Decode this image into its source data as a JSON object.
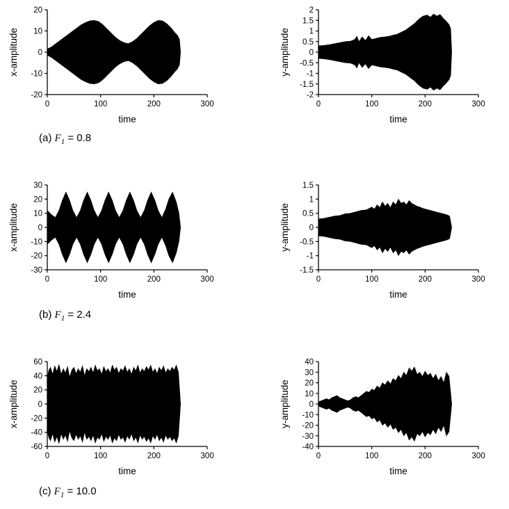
{
  "page": {
    "background": "#ffffff",
    "ink": "#000000"
  },
  "captions": [
    {
      "index": "(a)",
      "symbol": "F",
      "subscript": "1",
      "value": "= 0.8"
    },
    {
      "index": "(b)",
      "symbol": "F",
      "subscript": "1",
      "value": "= 2.4"
    },
    {
      "index": "(c)",
      "symbol": "F",
      "subscript": "1",
      "value": "= 10.0"
    }
  ],
  "chart_data": [
    {
      "id": "a-x",
      "type": "line",
      "waveform": "dense-oscillation-envelope",
      "title": "",
      "xlabel": "time",
      "ylabel": "x-amplitude",
      "xlim": [
        0,
        300
      ],
      "xticks": [
        "0",
        "100",
        "200",
        "300"
      ],
      "ylim": [
        -20,
        20
      ],
      "yticks": [
        "20",
        "10",
        "0",
        "-10",
        "-20"
      ],
      "grid": false,
      "legend": false,
      "signal_end": 250,
      "envelope": [
        [
          0,
          1.5
        ],
        [
          8,
          2.5
        ],
        [
          16,
          4
        ],
        [
          24,
          5.5
        ],
        [
          32,
          7
        ],
        [
          40,
          8.5
        ],
        [
          48,
          10
        ],
        [
          56,
          11.5
        ],
        [
          64,
          13
        ],
        [
          72,
          14
        ],
        [
          80,
          14.8
        ],
        [
          88,
          15
        ],
        [
          96,
          14.5
        ],
        [
          104,
          13
        ],
        [
          112,
          11
        ],
        [
          120,
          9
        ],
        [
          128,
          7
        ],
        [
          136,
          5.5
        ],
        [
          144,
          4.5
        ],
        [
          152,
          4
        ],
        [
          160,
          5
        ],
        [
          168,
          6.5
        ],
        [
          176,
          8.5
        ],
        [
          184,
          10.5
        ],
        [
          192,
          12.5
        ],
        [
          200,
          14
        ],
        [
          208,
          15
        ],
        [
          216,
          14.8
        ],
        [
          224,
          13.5
        ],
        [
          232,
          11.5
        ],
        [
          240,
          9
        ],
        [
          244,
          8
        ],
        [
          248,
          6
        ],
        [
          250,
          0
        ]
      ]
    },
    {
      "id": "a-y",
      "type": "line",
      "waveform": "dense-oscillation-envelope",
      "title": "",
      "xlabel": "time",
      "ylabel": "y-amplitude",
      "xlim": [
        0,
        300
      ],
      "xticks": [
        "0",
        "100",
        "200",
        "300"
      ],
      "ylim": [
        -2,
        2
      ],
      "yticks": [
        "2",
        "1.5",
        "1",
        "0.5",
        "0",
        "-0.5",
        "-1",
        "-1.5",
        "-2"
      ],
      "grid": false,
      "legend": false,
      "signal_end": 250,
      "envelope": [
        [
          0,
          0.3
        ],
        [
          10,
          0.32
        ],
        [
          20,
          0.35
        ],
        [
          30,
          0.4
        ],
        [
          40,
          0.45
        ],
        [
          50,
          0.5
        ],
        [
          60,
          0.52
        ],
        [
          68,
          0.6
        ],
        [
          72,
          0.75
        ],
        [
          76,
          0.5
        ],
        [
          82,
          0.72
        ],
        [
          88,
          0.55
        ],
        [
          94,
          0.78
        ],
        [
          100,
          0.6
        ],
        [
          108,
          0.65
        ],
        [
          116,
          0.7
        ],
        [
          124,
          0.72
        ],
        [
          132,
          0.75
        ],
        [
          140,
          0.8
        ],
        [
          148,
          0.85
        ],
        [
          156,
          0.95
        ],
        [
          164,
          1.05
        ],
        [
          172,
          1.2
        ],
        [
          180,
          1.35
        ],
        [
          188,
          1.55
        ],
        [
          196,
          1.7
        ],
        [
          204,
          1.75
        ],
        [
          210,
          1.65
        ],
        [
          216,
          1.8
        ],
        [
          222,
          1.7
        ],
        [
          228,
          1.78
        ],
        [
          234,
          1.6
        ],
        [
          240,
          1.45
        ],
        [
          245,
          1.3
        ],
        [
          248,
          1.1
        ],
        [
          250,
          0
        ]
      ]
    },
    {
      "id": "b-x",
      "type": "line",
      "waveform": "dense-oscillation-envelope",
      "title": "",
      "xlabel": "time",
      "ylabel": "x-amplitude",
      "xlim": [
        0,
        300
      ],
      "xticks": [
        "0",
        "100",
        "200",
        "300"
      ],
      "ylim": [
        -30,
        30
      ],
      "yticks": [
        "30",
        "20",
        "10",
        "0",
        "-10",
        "-20",
        "-30"
      ],
      "grid": false,
      "legend": false,
      "signal_end": 250,
      "envelope": [
        [
          0,
          12
        ],
        [
          8,
          9
        ],
        [
          15,
          7
        ],
        [
          22,
          12
        ],
        [
          28,
          19
        ],
        [
          35,
          25
        ],
        [
          42,
          19
        ],
        [
          48,
          12
        ],
        [
          55,
          7
        ],
        [
          62,
          12
        ],
        [
          68,
          19
        ],
        [
          75,
          25
        ],
        [
          82,
          19
        ],
        [
          88,
          12
        ],
        [
          95,
          7
        ],
        [
          102,
          12
        ],
        [
          108,
          19
        ],
        [
          115,
          25
        ],
        [
          122,
          19
        ],
        [
          128,
          12
        ],
        [
          135,
          7
        ],
        [
          142,
          12
        ],
        [
          148,
          19
        ],
        [
          155,
          25
        ],
        [
          162,
          19
        ],
        [
          168,
          12
        ],
        [
          175,
          7
        ],
        [
          182,
          12
        ],
        [
          188,
          19
        ],
        [
          195,
          25
        ],
        [
          202,
          19
        ],
        [
          208,
          12
        ],
        [
          215,
          7
        ],
        [
          222,
          13
        ],
        [
          228,
          20
        ],
        [
          235,
          25
        ],
        [
          242,
          18
        ],
        [
          247,
          10
        ],
        [
          250,
          0
        ]
      ]
    },
    {
      "id": "b-y",
      "type": "line",
      "waveform": "dense-oscillation-envelope",
      "title": "",
      "xlabel": "time",
      "ylabel": "y-amplitude",
      "xlim": [
        0,
        300
      ],
      "xticks": [
        "0",
        "100",
        "200",
        "300"
      ],
      "ylim": [
        -1.5,
        1.5
      ],
      "yticks": [
        "1.5",
        "1",
        "0.5",
        "0",
        "-0.5",
        "-1",
        "-1.5"
      ],
      "grid": false,
      "legend": false,
      "signal_end": 250,
      "envelope": [
        [
          0,
          0.3
        ],
        [
          10,
          0.32
        ],
        [
          20,
          0.36
        ],
        [
          30,
          0.4
        ],
        [
          40,
          0.42
        ],
        [
          50,
          0.48
        ],
        [
          60,
          0.5
        ],
        [
          70,
          0.55
        ],
        [
          80,
          0.6
        ],
        [
          90,
          0.62
        ],
        [
          100,
          0.72
        ],
        [
          105,
          0.65
        ],
        [
          110,
          0.8
        ],
        [
          115,
          0.7
        ],
        [
          120,
          0.9
        ],
        [
          125,
          0.75
        ],
        [
          130,
          0.85
        ],
        [
          135,
          0.7
        ],
        [
          140,
          0.9
        ],
        [
          145,
          0.8
        ],
        [
          150,
          1.0
        ],
        [
          155,
          0.85
        ],
        [
          160,
          0.9
        ],
        [
          165,
          0.8
        ],
        [
          170,
          0.95
        ],
        [
          175,
          0.85
        ],
        [
          180,
          0.8
        ],
        [
          185,
          0.75
        ],
        [
          190,
          0.72
        ],
        [
          195,
          0.68
        ],
        [
          200,
          0.65
        ],
        [
          210,
          0.6
        ],
        [
          220,
          0.55
        ],
        [
          230,
          0.5
        ],
        [
          240,
          0.45
        ],
        [
          246,
          0.4
        ],
        [
          250,
          0
        ]
      ]
    },
    {
      "id": "c-x",
      "type": "line",
      "waveform": "chaotic-oscillation-envelope",
      "title": "",
      "xlabel": "time",
      "ylabel": "x-amplitude",
      "xlim": [
        0,
        300
      ],
      "xticks": [
        "0",
        "100",
        "200",
        "300"
      ],
      "ylim": [
        -60,
        60
      ],
      "yticks": [
        "60",
        "40",
        "20",
        "0",
        "-20",
        "-40",
        "-60"
      ],
      "grid": false,
      "legend": false,
      "signal_end": 250,
      "envelope": [
        [
          0,
          38
        ],
        [
          3,
          48
        ],
        [
          6,
          52
        ],
        [
          10,
          42
        ],
        [
          14,
          54
        ],
        [
          18,
          46
        ],
        [
          22,
          56
        ],
        [
          26,
          42
        ],
        [
          30,
          50
        ],
        [
          34,
          44
        ],
        [
          38,
          53
        ],
        [
          42,
          38
        ],
        [
          46,
          48
        ],
        [
          50,
          52
        ],
        [
          54,
          43
        ],
        [
          58,
          50
        ],
        [
          62,
          45
        ],
        [
          66,
          54
        ],
        [
          70,
          40
        ],
        [
          74,
          50
        ],
        [
          78,
          46
        ],
        [
          82,
          52
        ],
        [
          86,
          44
        ],
        [
          90,
          55
        ],
        [
          94,
          47
        ],
        [
          98,
          50
        ],
        [
          102,
          42
        ],
        [
          106,
          53
        ],
        [
          110,
          46
        ],
        [
          114,
          50
        ],
        [
          118,
          44
        ],
        [
          122,
          55
        ],
        [
          126,
          48
        ],
        [
          130,
          52
        ],
        [
          134,
          43
        ],
        [
          138,
          50
        ],
        [
          142,
          47
        ],
        [
          146,
          54
        ],
        [
          150,
          45
        ],
        [
          154,
          50
        ],
        [
          158,
          42
        ],
        [
          162,
          52
        ],
        [
          166,
          47
        ],
        [
          170,
          55
        ],
        [
          174,
          44
        ],
        [
          178,
          50
        ],
        [
          182,
          46
        ],
        [
          186,
          53
        ],
        [
          190,
          48
        ],
        [
          194,
          55
        ],
        [
          198,
          45
        ],
        [
          202,
          50
        ],
        [
          206,
          43
        ],
        [
          210,
          52
        ],
        [
          214,
          47
        ],
        [
          218,
          54
        ],
        [
          222,
          44
        ],
        [
          226,
          50
        ],
        [
          230,
          46
        ],
        [
          234,
          52
        ],
        [
          238,
          48
        ],
        [
          242,
          55
        ],
        [
          246,
          45
        ],
        [
          250,
          0
        ]
      ]
    },
    {
      "id": "c-y",
      "type": "line",
      "waveform": "chaotic-oscillation-envelope",
      "title": "",
      "xlabel": "time",
      "ylabel": "y-amplitude",
      "xlim": [
        0,
        300
      ],
      "xticks": [
        "0",
        "100",
        "200",
        "300"
      ],
      "ylim": [
        -40,
        40
      ],
      "yticks": [
        "40",
        "30",
        "20",
        "10",
        "0",
        "-10",
        "-20",
        "-30",
        "-40"
      ],
      "grid": false,
      "legend": false,
      "signal_end": 250,
      "envelope": [
        [
          0,
          2
        ],
        [
          5,
          3
        ],
        [
          10,
          4
        ],
        [
          15,
          5
        ],
        [
          20,
          4
        ],
        [
          25,
          6
        ],
        [
          30,
          7
        ],
        [
          35,
          8
        ],
        [
          40,
          6
        ],
        [
          45,
          5
        ],
        [
          50,
          4
        ],
        [
          55,
          3
        ],
        [
          60,
          4
        ],
        [
          65,
          6
        ],
        [
          70,
          7
        ],
        [
          75,
          6
        ],
        [
          80,
          8
        ],
        [
          85,
          10
        ],
        [
          90,
          12
        ],
        [
          95,
          11
        ],
        [
          100,
          14
        ],
        [
          105,
          13
        ],
        [
          110,
          17
        ],
        [
          115,
          15
        ],
        [
          120,
          20
        ],
        [
          125,
          18
        ],
        [
          130,
          22
        ],
        [
          135,
          19
        ],
        [
          140,
          24
        ],
        [
          145,
          22
        ],
        [
          150,
          27
        ],
        [
          155,
          24
        ],
        [
          160,
          30
        ],
        [
          165,
          27
        ],
        [
          170,
          34
        ],
        [
          175,
          31
        ],
        [
          180,
          35
        ],
        [
          185,
          28
        ],
        [
          190,
          30
        ],
        [
          195,
          26
        ],
        [
          200,
          31
        ],
        [
          205,
          27
        ],
        [
          210,
          29
        ],
        [
          215,
          24
        ],
        [
          220,
          28
        ],
        [
          225,
          22
        ],
        [
          230,
          26
        ],
        [
          235,
          20
        ],
        [
          240,
          30
        ],
        [
          245,
          26
        ],
        [
          250,
          0
        ]
      ]
    }
  ]
}
